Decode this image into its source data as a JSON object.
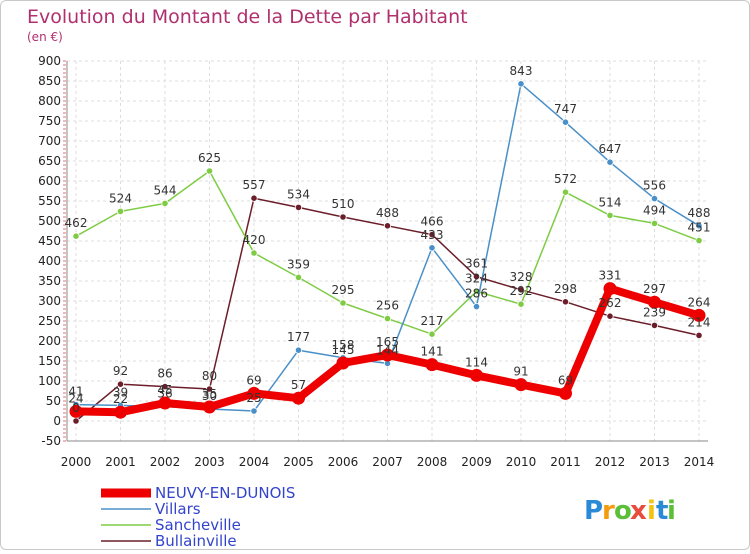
{
  "chart_data": {
    "type": "line",
    "title": "Evolution du Montant de la Dette par Habitant",
    "subtitle": "(en €)",
    "x": [
      "2000",
      "2001",
      "2002",
      "2003",
      "2004",
      "2005",
      "2006",
      "2007",
      "2008",
      "2009",
      "2010",
      "2011",
      "2012",
      "2013",
      "2014"
    ],
    "ylim": [
      -50,
      900
    ],
    "yticks": [
      -50,
      0,
      50,
      100,
      150,
      200,
      250,
      300,
      350,
      400,
      450,
      500,
      550,
      600,
      650,
      700,
      750,
      800,
      850,
      900
    ],
    "grid": true,
    "legend_position": "bottom-left",
    "series": [
      {
        "name": "NEUVY-EN-DUNOIS",
        "color": "#ee0000",
        "values": [
          24,
          22,
          45,
          35,
          69,
          57,
          145,
          165,
          141,
          114,
          91,
          69,
          331,
          297,
          264
        ]
      },
      {
        "name": "Villars",
        "color": "#4a90c8",
        "values": [
          41,
          39,
          36,
          30,
          25,
          177,
          158,
          144,
          433,
          286,
          843,
          747,
          647,
          556,
          488
        ]
      },
      {
        "name": "Sancheville",
        "color": "#7fcc44",
        "values": [
          462,
          524,
          544,
          625,
          420,
          359,
          295,
          256,
          217,
          324,
          292,
          572,
          514,
          494,
          451
        ]
      },
      {
        "name": "Bullainville",
        "color": "#6b1e2a",
        "values": [
          0,
          92,
          86,
          80,
          557,
          534,
          510,
          488,
          466,
          361,
          328,
          298,
          262,
          239,
          214
        ]
      }
    ]
  },
  "logo": {
    "text": "Proxiti",
    "letters": [
      "P",
      "r",
      "o",
      "x",
      "i",
      "t",
      "i"
    ],
    "colors": [
      "#2b8ad6",
      "#f39c12",
      "#5bbf3a",
      "#e74c3c",
      "#f1c40f",
      "#2b8ad6",
      "#5bbf3a"
    ]
  }
}
